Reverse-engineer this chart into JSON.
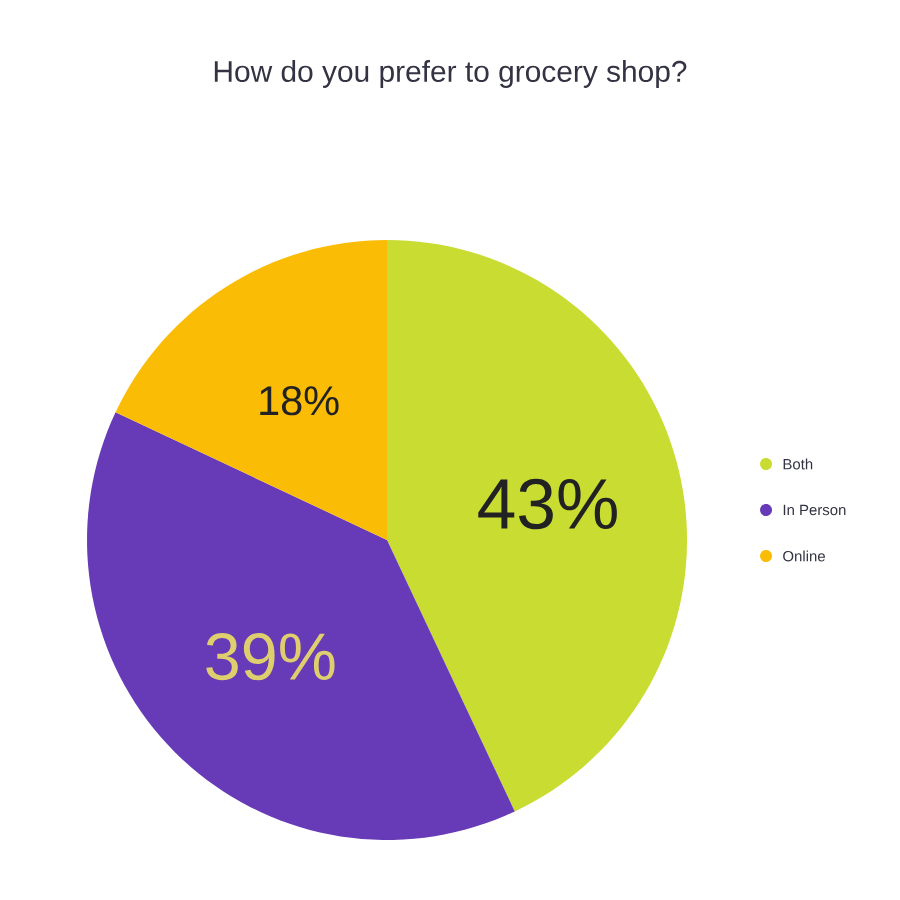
{
  "chart_data": {
    "type": "pie",
    "title": "How do you prefer to grocery shop?",
    "categories": [
      "Both",
      "In Person",
      "Online"
    ],
    "values": [
      43,
      39,
      18
    ],
    "colors": [
      "#c8dc32",
      "#673ab7",
      "#fbbc05"
    ],
    "value_labels": [
      "43%",
      "39%",
      "18%"
    ],
    "legend": "right"
  }
}
